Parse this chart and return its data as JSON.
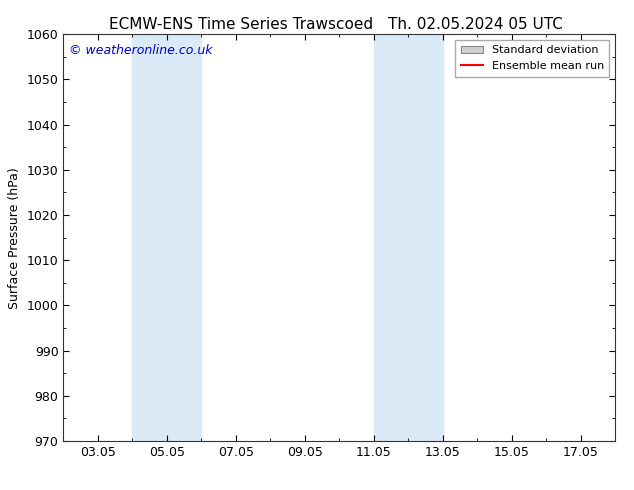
{
  "title_left": "ECMW-ENS Time Series Trawscoed",
  "title_right": "Th. 02.05.2024 05 UTC",
  "ylabel": "Surface Pressure (hPa)",
  "ylim": [
    970,
    1060
  ],
  "yticks": [
    970,
    980,
    990,
    1000,
    1010,
    1020,
    1030,
    1040,
    1050,
    1060
  ],
  "xlim": [
    2,
    18
  ],
  "xtick_labels": [
    "03.05",
    "05.05",
    "07.05",
    "09.05",
    "11.05",
    "13.05",
    "15.05",
    "17.05"
  ],
  "xtick_positions": [
    3,
    5,
    7,
    9,
    11,
    13,
    15,
    17
  ],
  "shaded_bands": [
    {
      "x_start": 4,
      "x_end": 6
    },
    {
      "x_start": 11,
      "x_end": 13
    }
  ],
  "shade_color": "#daeaf6",
  "background_color": "#ffffff",
  "watermark_text": "© weatheronline.co.uk",
  "watermark_color": "#0000cc",
  "legend_std_dev_color": "#d0d0d0",
  "legend_std_dev_edge": "#888888",
  "legend_mean_color": "#ff0000",
  "title_fontsize": 11,
  "axis_label_fontsize": 9,
  "tick_fontsize": 9,
  "legend_fontsize": 8
}
